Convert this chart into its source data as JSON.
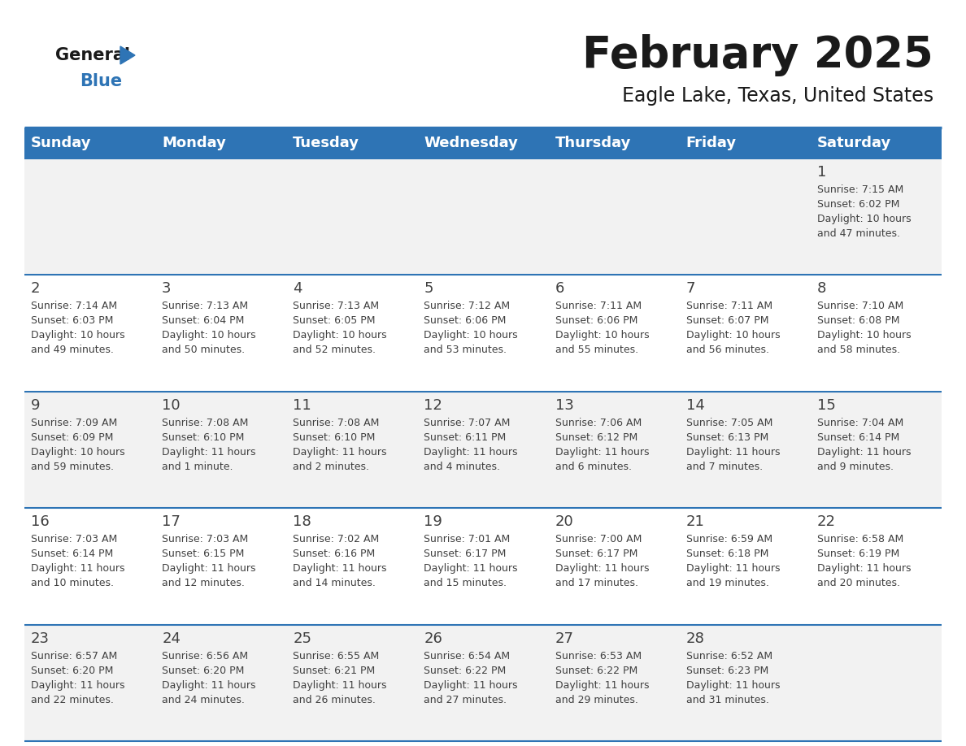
{
  "title": "February 2025",
  "subtitle": "Eagle Lake, Texas, United States",
  "header_color": "#2E74B5",
  "header_text_color": "#FFFFFF",
  "day_names": [
    "Sunday",
    "Monday",
    "Tuesday",
    "Wednesday",
    "Thursday",
    "Friday",
    "Saturday"
  ],
  "background_color": "#FFFFFF",
  "cell_bg_row0": "#F2F2F2",
  "cell_bg_row1": "#FFFFFF",
  "cell_bg_row2": "#F2F2F2",
  "cell_bg_row3": "#FFFFFF",
  "cell_bg_row4": "#F2F2F2",
  "line_color": "#2E74B5",
  "text_color": "#404040",
  "days": [
    {
      "day": 1,
      "col": 6,
      "row": 0,
      "sunrise": "7:15 AM",
      "sunset": "6:02 PM",
      "daylight_h": "10 hours",
      "daylight_m": "and 47 minutes."
    },
    {
      "day": 2,
      "col": 0,
      "row": 1,
      "sunrise": "7:14 AM",
      "sunset": "6:03 PM",
      "daylight_h": "10 hours",
      "daylight_m": "and 49 minutes."
    },
    {
      "day": 3,
      "col": 1,
      "row": 1,
      "sunrise": "7:13 AM",
      "sunset": "6:04 PM",
      "daylight_h": "10 hours",
      "daylight_m": "and 50 minutes."
    },
    {
      "day": 4,
      "col": 2,
      "row": 1,
      "sunrise": "7:13 AM",
      "sunset": "6:05 PM",
      "daylight_h": "10 hours",
      "daylight_m": "and 52 minutes."
    },
    {
      "day": 5,
      "col": 3,
      "row": 1,
      "sunrise": "7:12 AM",
      "sunset": "6:06 PM",
      "daylight_h": "10 hours",
      "daylight_m": "and 53 minutes."
    },
    {
      "day": 6,
      "col": 4,
      "row": 1,
      "sunrise": "7:11 AM",
      "sunset": "6:06 PM",
      "daylight_h": "10 hours",
      "daylight_m": "and 55 minutes."
    },
    {
      "day": 7,
      "col": 5,
      "row": 1,
      "sunrise": "7:11 AM",
      "sunset": "6:07 PM",
      "daylight_h": "10 hours",
      "daylight_m": "and 56 minutes."
    },
    {
      "day": 8,
      "col": 6,
      "row": 1,
      "sunrise": "7:10 AM",
      "sunset": "6:08 PM",
      "daylight_h": "10 hours",
      "daylight_m": "and 58 minutes."
    },
    {
      "day": 9,
      "col": 0,
      "row": 2,
      "sunrise": "7:09 AM",
      "sunset": "6:09 PM",
      "daylight_h": "10 hours",
      "daylight_m": "and 59 minutes."
    },
    {
      "day": 10,
      "col": 1,
      "row": 2,
      "sunrise": "7:08 AM",
      "sunset": "6:10 PM",
      "daylight_h": "11 hours",
      "daylight_m": "and 1 minute."
    },
    {
      "day": 11,
      "col": 2,
      "row": 2,
      "sunrise": "7:08 AM",
      "sunset": "6:10 PM",
      "daylight_h": "11 hours",
      "daylight_m": "and 2 minutes."
    },
    {
      "day": 12,
      "col": 3,
      "row": 2,
      "sunrise": "7:07 AM",
      "sunset": "6:11 PM",
      "daylight_h": "11 hours",
      "daylight_m": "and 4 minutes."
    },
    {
      "day": 13,
      "col": 4,
      "row": 2,
      "sunrise": "7:06 AM",
      "sunset": "6:12 PM",
      "daylight_h": "11 hours",
      "daylight_m": "and 6 minutes."
    },
    {
      "day": 14,
      "col": 5,
      "row": 2,
      "sunrise": "7:05 AM",
      "sunset": "6:13 PM",
      "daylight_h": "11 hours",
      "daylight_m": "and 7 minutes."
    },
    {
      "day": 15,
      "col": 6,
      "row": 2,
      "sunrise": "7:04 AM",
      "sunset": "6:14 PM",
      "daylight_h": "11 hours",
      "daylight_m": "and 9 minutes."
    },
    {
      "day": 16,
      "col": 0,
      "row": 3,
      "sunrise": "7:03 AM",
      "sunset": "6:14 PM",
      "daylight_h": "11 hours",
      "daylight_m": "and 10 minutes."
    },
    {
      "day": 17,
      "col": 1,
      "row": 3,
      "sunrise": "7:03 AM",
      "sunset": "6:15 PM",
      "daylight_h": "11 hours",
      "daylight_m": "and 12 minutes."
    },
    {
      "day": 18,
      "col": 2,
      "row": 3,
      "sunrise": "7:02 AM",
      "sunset": "6:16 PM",
      "daylight_h": "11 hours",
      "daylight_m": "and 14 minutes."
    },
    {
      "day": 19,
      "col": 3,
      "row": 3,
      "sunrise": "7:01 AM",
      "sunset": "6:17 PM",
      "daylight_h": "11 hours",
      "daylight_m": "and 15 minutes."
    },
    {
      "day": 20,
      "col": 4,
      "row": 3,
      "sunrise": "7:00 AM",
      "sunset": "6:17 PM",
      "daylight_h": "11 hours",
      "daylight_m": "and 17 minutes."
    },
    {
      "day": 21,
      "col": 5,
      "row": 3,
      "sunrise": "6:59 AM",
      "sunset": "6:18 PM",
      "daylight_h": "11 hours",
      "daylight_m": "and 19 minutes."
    },
    {
      "day": 22,
      "col": 6,
      "row": 3,
      "sunrise": "6:58 AM",
      "sunset": "6:19 PM",
      "daylight_h": "11 hours",
      "daylight_m": "and 20 minutes."
    },
    {
      "day": 23,
      "col": 0,
      "row": 4,
      "sunrise": "6:57 AM",
      "sunset": "6:20 PM",
      "daylight_h": "11 hours",
      "daylight_m": "and 22 minutes."
    },
    {
      "day": 24,
      "col": 1,
      "row": 4,
      "sunrise": "6:56 AM",
      "sunset": "6:20 PM",
      "daylight_h": "11 hours",
      "daylight_m": "and 24 minutes."
    },
    {
      "day": 25,
      "col": 2,
      "row": 4,
      "sunrise": "6:55 AM",
      "sunset": "6:21 PM",
      "daylight_h": "11 hours",
      "daylight_m": "and 26 minutes."
    },
    {
      "day": 26,
      "col": 3,
      "row": 4,
      "sunrise": "6:54 AM",
      "sunset": "6:22 PM",
      "daylight_h": "11 hours",
      "daylight_m": "and 27 minutes."
    },
    {
      "day": 27,
      "col": 4,
      "row": 4,
      "sunrise": "6:53 AM",
      "sunset": "6:22 PM",
      "daylight_h": "11 hours",
      "daylight_m": "and 29 minutes."
    },
    {
      "day": 28,
      "col": 5,
      "row": 4,
      "sunrise": "6:52 AM",
      "sunset": "6:23 PM",
      "daylight_h": "11 hours",
      "daylight_m": "and 31 minutes."
    }
  ]
}
